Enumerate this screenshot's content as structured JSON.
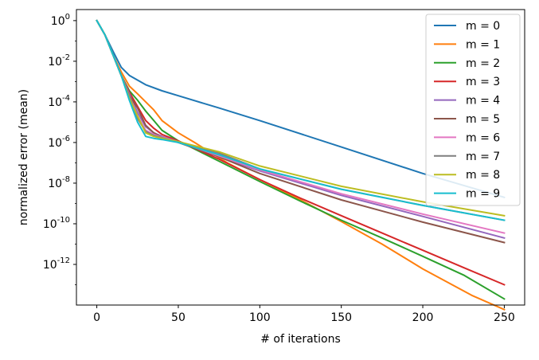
{
  "chart_data": {
    "type": "line",
    "title": "",
    "xlabel": "# of iterations",
    "ylabel": "normalized error (mean)",
    "xlim": [
      -12.5,
      262.5
    ],
    "ylim": [
      1e-14,
      3.5
    ],
    "yscale": "log",
    "grid": false,
    "legend": "top-right",
    "x_ticks": [
      0,
      50,
      100,
      150,
      200,
      250
    ],
    "y_ticks": [
      {
        "exp": 0,
        "value": 1
      },
      {
        "exp": -2,
        "value": 0.01
      },
      {
        "exp": -4,
        "value": 0.0001
      },
      {
        "exp": -6,
        "value": 1e-06
      },
      {
        "exp": -8,
        "value": 1e-08
      },
      {
        "exp": -10,
        "value": 1e-10
      },
      {
        "exp": -12,
        "value": 1e-12
      }
    ],
    "series": [
      {
        "name": "m = 0",
        "color": "#1f77b4",
        "x": [
          0,
          5,
          10,
          15,
          20,
          30,
          40,
          50,
          75,
          100,
          150,
          200,
          250
        ],
        "y": [
          1,
          0.2,
          0.03,
          0.005,
          0.002,
          0.0007,
          0.00035,
          0.0002,
          5e-05,
          1.2e-05,
          6e-07,
          3e-08,
          2e-09
        ]
      },
      {
        "name": "m = 1",
        "color": "#ff7f0e",
        "x": [
          0,
          5,
          10,
          15,
          20,
          25,
          30,
          35,
          40,
          50,
          60,
          80,
          100,
          125,
          150,
          175,
          200,
          230,
          250
        ],
        "y": [
          1,
          0.2,
          0.02,
          0.003,
          0.0006,
          0.00025,
          0.0001,
          4e-05,
          1.2e-05,
          3e-06,
          1e-06,
          1e-07,
          1.5e-08,
          1.5e-09,
          1.3e-10,
          1e-11,
          6e-13,
          3e-14,
          6e-15
        ]
      },
      {
        "name": "m = 2",
        "color": "#2ca02c",
        "x": [
          0,
          5,
          10,
          15,
          20,
          25,
          30,
          35,
          40,
          50,
          75,
          100,
          125,
          150,
          175,
          200,
          225,
          250
        ],
        "y": [
          1,
          0.2,
          0.02,
          0.002,
          0.00035,
          0.00012,
          3.5e-05,
          1.2e-05,
          4e-06,
          1.2e-06,
          1.2e-07,
          1.2e-08,
          1.3e-09,
          1.5e-10,
          2e-11,
          2.5e-12,
          3e-13,
          2e-14
        ]
      },
      {
        "name": "m = 3",
        "color": "#d62728",
        "x": [
          0,
          5,
          10,
          15,
          20,
          25,
          30,
          35,
          40,
          50,
          75,
          100,
          125,
          150,
          175,
          200,
          225,
          250
        ],
        "y": [
          1,
          0.2,
          0.02,
          0.002,
          0.0003,
          6e-05,
          1.2e-05,
          5e-06,
          2.5e-06,
          1.2e-06,
          1.5e-07,
          1.5e-08,
          1.8e-09,
          2.5e-10,
          3.5e-11,
          5e-12,
          7e-13,
          1e-13
        ]
      },
      {
        "name": "m = 4",
        "color": "#9467bd",
        "x": [
          0,
          5,
          10,
          15,
          20,
          25,
          30,
          35,
          40,
          50,
          75,
          100,
          150,
          200,
          250
        ],
        "y": [
          1,
          0.2,
          0.02,
          0.002,
          0.00025,
          3e-05,
          6e-06,
          3e-06,
          2e-06,
          1.1e-06,
          2e-07,
          4e-08,
          2.5e-09,
          2.3e-10,
          2e-11
        ]
      },
      {
        "name": "m = 5",
        "color": "#8c564b",
        "x": [
          0,
          5,
          10,
          15,
          20,
          25,
          30,
          35,
          40,
          50,
          75,
          100,
          150,
          200,
          250
        ],
        "y": [
          1,
          0.2,
          0.02,
          0.002,
          0.0002,
          5e-05,
          7e-06,
          3e-06,
          1.8e-06,
          1e-06,
          2e-07,
          3e-08,
          1.5e-09,
          1.2e-10,
          1.2e-11
        ]
      },
      {
        "name": "m = 6",
        "color": "#e377c2",
        "x": [
          0,
          5,
          10,
          15,
          20,
          25,
          30,
          35,
          40,
          50,
          75,
          100,
          150,
          200,
          250
        ],
        "y": [
          1,
          0.2,
          0.02,
          0.002,
          0.0002,
          2e-05,
          4e-06,
          2.5e-06,
          1.8e-06,
          1.1e-06,
          2.2e-07,
          4.5e-08,
          3e-09,
          3e-10,
          3.5e-11
        ]
      },
      {
        "name": "m = 7",
        "color": "#7f7f7f",
        "x": [
          0,
          5,
          10,
          15,
          20,
          25,
          30,
          35,
          40,
          50,
          75,
          100,
          150,
          200,
          250
        ],
        "y": [
          1,
          0.2,
          0.02,
          0.002,
          0.0002,
          1.5e-05,
          3.5e-06,
          2.2e-06,
          1.7e-06,
          1.1e-06,
          3e-07,
          5e-08,
          5e-09,
          8e-10,
          1.5e-10
        ]
      },
      {
        "name": "m = 8",
        "color": "#bcbd22",
        "x": [
          0,
          5,
          10,
          15,
          20,
          25,
          30,
          35,
          40,
          50,
          75,
          100,
          150,
          200,
          250
        ],
        "y": [
          1,
          0.2,
          0.02,
          0.002,
          0.00015,
          2e-05,
          3e-06,
          2e-06,
          1.6e-06,
          1.1e-06,
          3.5e-07,
          7e-08,
          7e-09,
          1.2e-09,
          2.5e-10
        ]
      },
      {
        "name": "m = 9",
        "color": "#17becf",
        "x": [
          0,
          5,
          10,
          15,
          20,
          25,
          30,
          35,
          40,
          50,
          75,
          100,
          150,
          200,
          250
        ],
        "y": [
          1,
          0.2,
          0.02,
          0.002,
          0.00012,
          1e-05,
          2e-06,
          1.6e-06,
          1.4e-06,
          1e-06,
          2.5e-07,
          5e-08,
          5e-09,
          8e-10,
          1.5e-10
        ]
      }
    ]
  }
}
